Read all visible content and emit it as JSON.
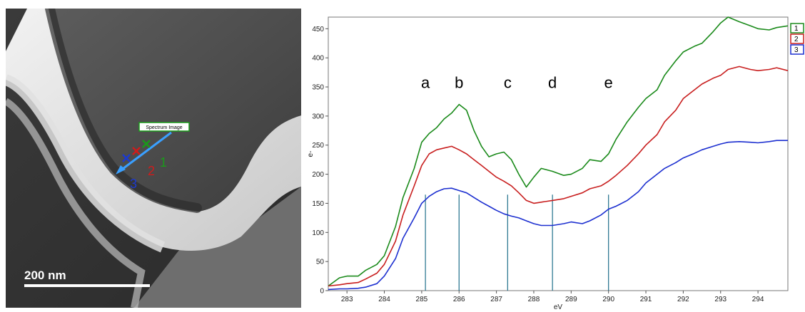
{
  "micrograph": {
    "scale_bar_label": "200 nm",
    "spectrum_image_label": "Spectrum Image",
    "point_labels": [
      {
        "text": "1",
        "color": "#1a9a1a"
      },
      {
        "text": "2",
        "color": "#d01c1c"
      },
      {
        "text": "3",
        "color": "#1c3ad0"
      }
    ]
  },
  "chart_data": {
    "type": "line",
    "xlabel": "eV",
    "ylabel": "e-",
    "xlim": [
      282.5,
      294.8
    ],
    "ylim": [
      0,
      470
    ],
    "x_ticks": [
      283,
      284,
      285,
      286,
      287,
      288,
      289,
      290,
      291,
      292,
      293,
      294
    ],
    "y_ticks": [
      0,
      50,
      100,
      150,
      200,
      250,
      300,
      350,
      400,
      450
    ],
    "grid": false,
    "legend_position": "top-right",
    "legend": [
      "1",
      "2",
      "3"
    ],
    "series": [
      {
        "name": "1",
        "color": "#1a8a1a",
        "x": [
          282.5,
          282.8,
          283.0,
          283.3,
          283.5,
          283.8,
          284.0,
          284.3,
          284.5,
          284.8,
          285.0,
          285.2,
          285.4,
          285.6,
          285.8,
          286.0,
          286.2,
          286.4,
          286.6,
          286.8,
          287.0,
          287.2,
          287.4,
          287.6,
          287.8,
          288.0,
          288.2,
          288.5,
          288.8,
          289.0,
          289.3,
          289.5,
          289.8,
          290.0,
          290.2,
          290.5,
          290.8,
          291.0,
          291.3,
          291.5,
          291.8,
          292.0,
          292.3,
          292.5,
          292.8,
          293.0,
          293.2,
          293.5,
          293.8,
          294.0,
          294.3,
          294.5,
          294.8
        ],
        "y": [
          8,
          22,
          25,
          25,
          35,
          45,
          60,
          110,
          160,
          210,
          255,
          270,
          280,
          295,
          305,
          320,
          310,
          275,
          248,
          230,
          235,
          238,
          225,
          200,
          178,
          195,
          210,
          205,
          198,
          200,
          210,
          225,
          222,
          235,
          260,
          290,
          315,
          330,
          345,
          370,
          395,
          410,
          420,
          425,
          445,
          460,
          470,
          462,
          455,
          450,
          448,
          452,
          455
        ]
      },
      {
        "name": "2",
        "color": "#c81e1e",
        "x": [
          282.5,
          282.8,
          283.0,
          283.3,
          283.5,
          283.8,
          284.0,
          284.3,
          284.5,
          284.8,
          285.0,
          285.2,
          285.4,
          285.6,
          285.8,
          286.0,
          286.2,
          286.4,
          286.6,
          286.8,
          287.0,
          287.2,
          287.4,
          287.6,
          287.8,
          288.0,
          288.2,
          288.5,
          288.8,
          289.0,
          289.3,
          289.5,
          289.8,
          290.0,
          290.2,
          290.5,
          290.8,
          291.0,
          291.3,
          291.5,
          291.8,
          292.0,
          292.3,
          292.5,
          292.8,
          293.0,
          293.2,
          293.5,
          293.8,
          294.0,
          294.3,
          294.5,
          294.8
        ],
        "y": [
          8,
          10,
          12,
          14,
          20,
          30,
          45,
          85,
          130,
          180,
          215,
          235,
          242,
          245,
          248,
          242,
          235,
          225,
          215,
          205,
          195,
          188,
          180,
          168,
          155,
          150,
          152,
          155,
          158,
          162,
          168,
          175,
          180,
          188,
          198,
          215,
          235,
          250,
          268,
          290,
          310,
          330,
          345,
          355,
          365,
          370,
          380,
          385,
          380,
          378,
          380,
          383,
          378
        ]
      },
      {
        "name": "3",
        "color": "#1c2fd0",
        "x": [
          282.5,
          282.8,
          283.0,
          283.3,
          283.5,
          283.8,
          284.0,
          284.3,
          284.5,
          284.8,
          285.0,
          285.2,
          285.4,
          285.6,
          285.8,
          286.0,
          286.2,
          286.4,
          286.6,
          286.8,
          287.0,
          287.2,
          287.4,
          287.6,
          287.8,
          288.0,
          288.2,
          288.5,
          288.8,
          289.0,
          289.3,
          289.5,
          289.8,
          290.0,
          290.2,
          290.5,
          290.8,
          291.0,
          291.3,
          291.5,
          291.8,
          292.0,
          292.3,
          292.5,
          292.8,
          293.0,
          293.2,
          293.5,
          293.8,
          294.0,
          294.3,
          294.5,
          294.8
        ],
        "y": [
          2,
          3,
          3,
          4,
          6,
          12,
          25,
          55,
          90,
          125,
          150,
          162,
          170,
          175,
          176,
          172,
          168,
          160,
          152,
          145,
          138,
          132,
          128,
          125,
          120,
          115,
          112,
          112,
          115,
          118,
          115,
          120,
          130,
          140,
          145,
          155,
          170,
          185,
          200,
          210,
          220,
          228,
          236,
          242,
          248,
          252,
          255,
          256,
          255,
          254,
          256,
          258,
          258
        ]
      }
    ],
    "annotations": [
      {
        "text": "a",
        "x": 285.1
      },
      {
        "text": "b",
        "x": 286.0
      },
      {
        "text": "c",
        "x": 287.3
      },
      {
        "text": "d",
        "x": 288.5
      },
      {
        "text": "e",
        "x": 290.0
      }
    ],
    "marker_lines": [
      {
        "x": 285.1,
        "y_top": 165
      },
      {
        "x": 286.0,
        "y_top": 165
      },
      {
        "x": 287.3,
        "y_top": 165
      },
      {
        "x": 288.5,
        "y_top": 165
      },
      {
        "x": 290.0,
        "y_top": 165
      }
    ],
    "marker_line_color": "#1f6f8b"
  }
}
